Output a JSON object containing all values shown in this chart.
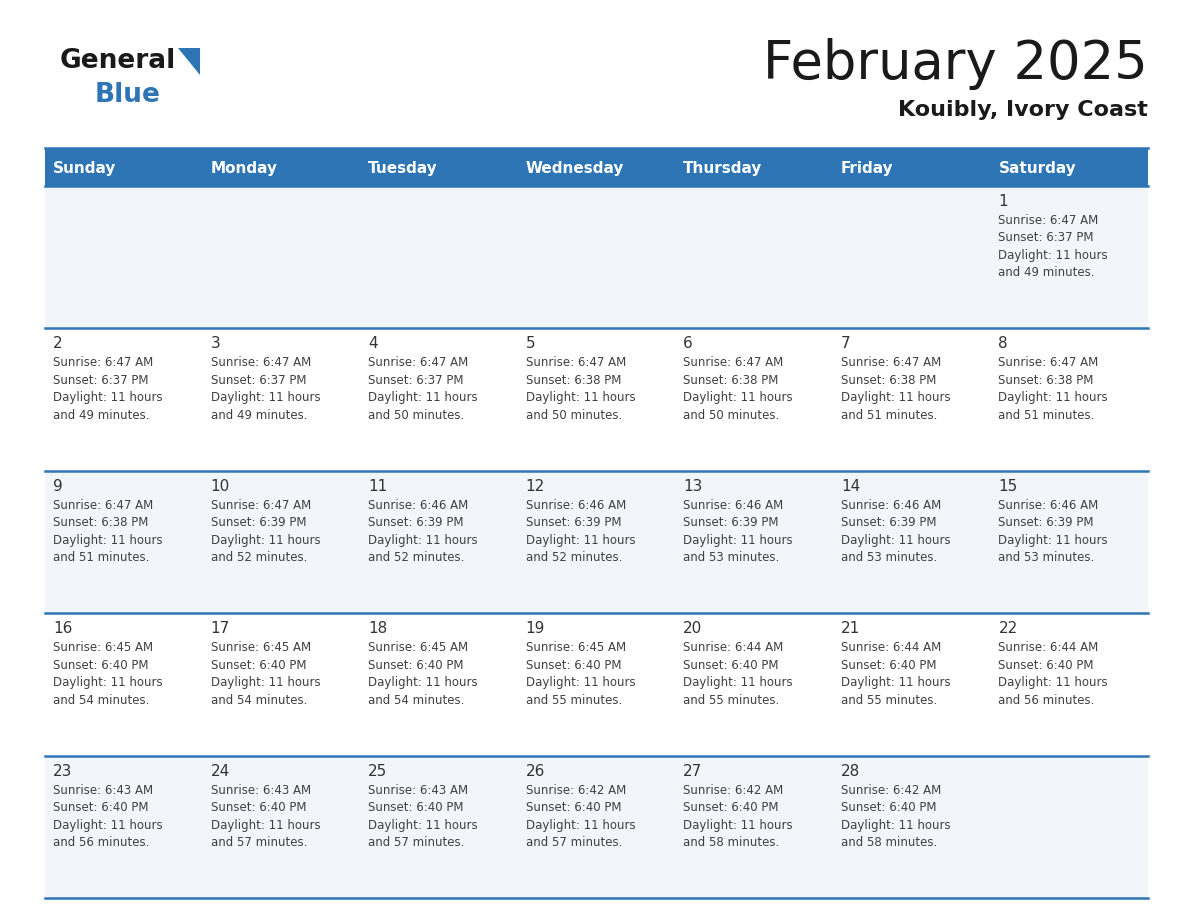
{
  "title": "February 2025",
  "subtitle": "Kouibly, Ivory Coast",
  "header_bg": "#2E75B6",
  "header_text": "#FFFFFF",
  "days_of_week": [
    "Sunday",
    "Monday",
    "Tuesday",
    "Wednesday",
    "Thursday",
    "Friday",
    "Saturday"
  ],
  "grid_line_color": "#2E75B6",
  "cell_bg_light": "#F2F6FB",
  "cell_bg_white": "#FFFFFF",
  "text_color": "#404040",
  "day_number_color": "#333333",
  "calendar": [
    [
      null,
      null,
      null,
      null,
      null,
      null,
      {
        "day": 1,
        "sunrise": "6:47 AM",
        "sunset": "6:37 PM",
        "daylight": "11 hours and 49 minutes."
      }
    ],
    [
      {
        "day": 2,
        "sunrise": "6:47 AM",
        "sunset": "6:37 PM",
        "daylight": "11 hours and 49 minutes."
      },
      {
        "day": 3,
        "sunrise": "6:47 AM",
        "sunset": "6:37 PM",
        "daylight": "11 hours and 49 minutes."
      },
      {
        "day": 4,
        "sunrise": "6:47 AM",
        "sunset": "6:37 PM",
        "daylight": "11 hours and 50 minutes."
      },
      {
        "day": 5,
        "sunrise": "6:47 AM",
        "sunset": "6:38 PM",
        "daylight": "11 hours and 50 minutes."
      },
      {
        "day": 6,
        "sunrise": "6:47 AM",
        "sunset": "6:38 PM",
        "daylight": "11 hours and 50 minutes."
      },
      {
        "day": 7,
        "sunrise": "6:47 AM",
        "sunset": "6:38 PM",
        "daylight": "11 hours and 51 minutes."
      },
      {
        "day": 8,
        "sunrise": "6:47 AM",
        "sunset": "6:38 PM",
        "daylight": "11 hours and 51 minutes."
      }
    ],
    [
      {
        "day": 9,
        "sunrise": "6:47 AM",
        "sunset": "6:38 PM",
        "daylight": "11 hours and 51 minutes."
      },
      {
        "day": 10,
        "sunrise": "6:47 AM",
        "sunset": "6:39 PM",
        "daylight": "11 hours and 52 minutes."
      },
      {
        "day": 11,
        "sunrise": "6:46 AM",
        "sunset": "6:39 PM",
        "daylight": "11 hours and 52 minutes."
      },
      {
        "day": 12,
        "sunrise": "6:46 AM",
        "sunset": "6:39 PM",
        "daylight": "11 hours and 52 minutes."
      },
      {
        "day": 13,
        "sunrise": "6:46 AM",
        "sunset": "6:39 PM",
        "daylight": "11 hours and 53 minutes."
      },
      {
        "day": 14,
        "sunrise": "6:46 AM",
        "sunset": "6:39 PM",
        "daylight": "11 hours and 53 minutes."
      },
      {
        "day": 15,
        "sunrise": "6:46 AM",
        "sunset": "6:39 PM",
        "daylight": "11 hours and 53 minutes."
      }
    ],
    [
      {
        "day": 16,
        "sunrise": "6:45 AM",
        "sunset": "6:40 PM",
        "daylight": "11 hours and 54 minutes."
      },
      {
        "day": 17,
        "sunrise": "6:45 AM",
        "sunset": "6:40 PM",
        "daylight": "11 hours and 54 minutes."
      },
      {
        "day": 18,
        "sunrise": "6:45 AM",
        "sunset": "6:40 PM",
        "daylight": "11 hours and 54 minutes."
      },
      {
        "day": 19,
        "sunrise": "6:45 AM",
        "sunset": "6:40 PM",
        "daylight": "11 hours and 55 minutes."
      },
      {
        "day": 20,
        "sunrise": "6:44 AM",
        "sunset": "6:40 PM",
        "daylight": "11 hours and 55 minutes."
      },
      {
        "day": 21,
        "sunrise": "6:44 AM",
        "sunset": "6:40 PM",
        "daylight": "11 hours and 55 minutes."
      },
      {
        "day": 22,
        "sunrise": "6:44 AM",
        "sunset": "6:40 PM",
        "daylight": "11 hours and 56 minutes."
      }
    ],
    [
      {
        "day": 23,
        "sunrise": "6:43 AM",
        "sunset": "6:40 PM",
        "daylight": "11 hours and 56 minutes."
      },
      {
        "day": 24,
        "sunrise": "6:43 AM",
        "sunset": "6:40 PM",
        "daylight": "11 hours and 57 minutes."
      },
      {
        "day": 25,
        "sunrise": "6:43 AM",
        "sunset": "6:40 PM",
        "daylight": "11 hours and 57 minutes."
      },
      {
        "day": 26,
        "sunrise": "6:42 AM",
        "sunset": "6:40 PM",
        "daylight": "11 hours and 57 minutes."
      },
      {
        "day": 27,
        "sunrise": "6:42 AM",
        "sunset": "6:40 PM",
        "daylight": "11 hours and 58 minutes."
      },
      {
        "day": 28,
        "sunrise": "6:42 AM",
        "sunset": "6:40 PM",
        "daylight": "11 hours and 58 minutes."
      },
      null
    ]
  ]
}
